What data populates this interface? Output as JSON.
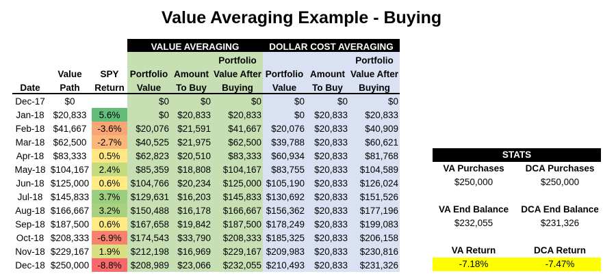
{
  "title": "Value Averaging Example - Buying",
  "groups": {
    "va": "VALUE AVERAGING",
    "dca": "DOLLAR COST AVERAGING"
  },
  "headers": {
    "date": "Date",
    "value_path": [
      "Value",
      "Path"
    ],
    "spy": [
      "SPY",
      "Return"
    ],
    "pv": [
      "Portfolio",
      "Value"
    ],
    "atb": [
      "Amount",
      "To Buy"
    ],
    "pva": [
      "Portfolio",
      "Value After",
      "Buying"
    ]
  },
  "rows": [
    [
      "Dec-17",
      "$0",
      "",
      "$0",
      "$0",
      "$0",
      "$0",
      "$0",
      "$0"
    ],
    [
      "Jan-18",
      "$20,833",
      "5.6%",
      "$0",
      "$20,833",
      "$20,833",
      "$0",
      "$20,833",
      "$20,833"
    ],
    [
      "Feb-18",
      "$41,667",
      "-3.6%",
      "$20,076",
      "$21,591",
      "$41,667",
      "$20,076",
      "$20,833",
      "$40,909"
    ],
    [
      "Mar-18",
      "$62,500",
      "-2.7%",
      "$40,525",
      "$21,975",
      "$62,500",
      "$39,788",
      "$20,833",
      "$60,621"
    ],
    [
      "Apr-18",
      "$83,333",
      "0.5%",
      "$62,823",
      "$20,510",
      "$83,333",
      "$60,934",
      "$20,833",
      "$81,768"
    ],
    [
      "May-18",
      "$104,167",
      "2.4%",
      "$85,359",
      "$18,808",
      "$104,167",
      "$83,755",
      "$20,833",
      "$104,589"
    ],
    [
      "Jun-18",
      "$125,000",
      "0.6%",
      "$104,766",
      "$20,234",
      "$125,000",
      "$105,190",
      "$20,833",
      "$126,024"
    ],
    [
      "Jul-18",
      "$145,833",
      "3.7%",
      "$129,631",
      "$16,203",
      "$145,833",
      "$130,692",
      "$20,833",
      "$151,526"
    ],
    [
      "Aug-18",
      "$166,667",
      "3.2%",
      "$150,488",
      "$16,178",
      "$166,667",
      "$156,362",
      "$20,833",
      "$177,196"
    ],
    [
      "Sep-18",
      "$187,500",
      "0.6%",
      "$167,658",
      "$19,842",
      "$187,500",
      "$178,249",
      "$20,833",
      "$199,083"
    ],
    [
      "Oct-18",
      "$208,333",
      "-6.9%",
      "$174,543",
      "$33,790",
      "$208,333",
      "$185,325",
      "$20,833",
      "$206,158"
    ],
    [
      "Nov-18",
      "$229,167",
      "1.9%",
      "$212,198",
      "$16,969",
      "$229,167",
      "$209,983",
      "$20,833",
      "$230,816"
    ],
    [
      "Dec-18",
      "$250,000",
      "-8.8%",
      "$208,989",
      "$23,066",
      "$232,055",
      "$210,493",
      "$20,833",
      "$231,326"
    ]
  ],
  "spy_colors": [
    "#ffffff",
    "#63be7b",
    "#f9a676",
    "#fbb77a",
    "#ffe884",
    "#c5db80",
    "#ffea84",
    "#9bce7e",
    "#a8d27f",
    "#ffea84",
    "#f8826f",
    "#d8e082",
    "#f8696b"
  ],
  "stats": {
    "title": "STATS",
    "va_purchases_label": "VA Purchases",
    "dca_purchases_label": "DCA Purchases",
    "va_purchases": "$250,000",
    "dca_purchases": "$250,000",
    "va_end_label": "VA End Balance",
    "dca_end_label": "DCA End Balance",
    "va_end": "$232,055",
    "dca_end": "$231,326",
    "va_return_label": "VA Return",
    "dca_return_label": "DCA Return",
    "va_return": "-7.18%",
    "dca_return": "-7.47%"
  }
}
